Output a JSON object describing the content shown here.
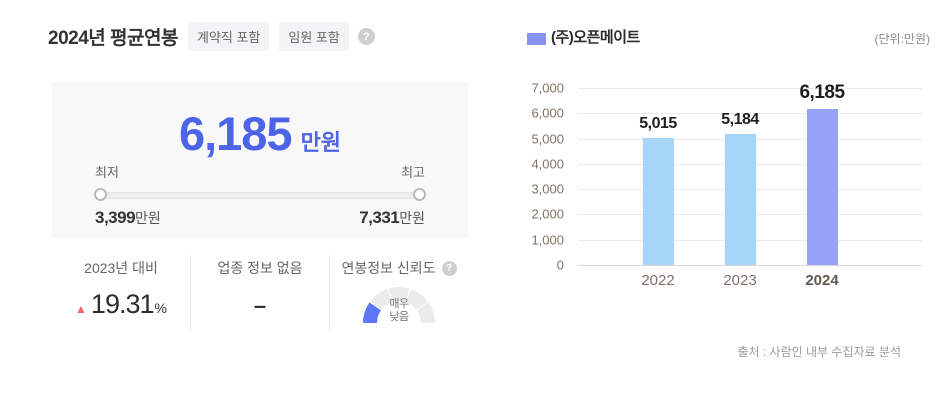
{
  "header": {
    "title": "2024년 평균연봉",
    "tags": [
      {
        "label": "계약직 포함"
      },
      {
        "label": "임원 포함"
      }
    ],
    "help": "?"
  },
  "summary": {
    "amount": "6,185",
    "amount_unit": "만원",
    "range": {
      "min_label": "최저",
      "max_label": "최고",
      "min_value": "3,399",
      "min_unit": "만원",
      "max_value": "7,331",
      "max_unit": "만원"
    }
  },
  "stats": {
    "yoy_label": "2023년 대비",
    "yoy_direction": "▲",
    "yoy_value": "19.31",
    "yoy_unit": "%",
    "industry_label": "업종 정보 없음",
    "industry_value": "–",
    "reliability_label": "연봉정보 신뢰도",
    "reliability_help": "?",
    "reliability_line1": "매우",
    "reliability_line2": "낮음"
  },
  "gauge": {
    "segments": 5,
    "active_segment": 0,
    "active_color": "#5b76f7",
    "inactive_color": "#ebebeb"
  },
  "chart_data": {
    "type": "bar",
    "legend": "(주)오픈메이트",
    "legend_color": "#8893f0",
    "legend_position": "top-left",
    "unit_label": "(단위:만원)",
    "categories": [
      "2022",
      "2023",
      "2024"
    ],
    "values": [
      5015,
      5184,
      6185
    ],
    "value_labels": [
      "5,015",
      "5,184",
      "6,185"
    ],
    "bar_colors": [
      "#a5d5f8",
      "#a5d5f8",
      "#97a1f5"
    ],
    "highlight_index": 2,
    "ylim": [
      0,
      7000
    ],
    "ytick_labels": [
      "0",
      "1,000",
      "2,000",
      "3,000",
      "4,000",
      "5,000",
      "6,000",
      "7,000"
    ],
    "grid": true,
    "source": "출처 : 사람인 내부 수집자료 분석"
  },
  "colors": {
    "accent": "#4d63e8",
    "up_red": "#f0616b",
    "bar_light": "#a5d5f8",
    "bar_highlight": "#97a1f5"
  }
}
